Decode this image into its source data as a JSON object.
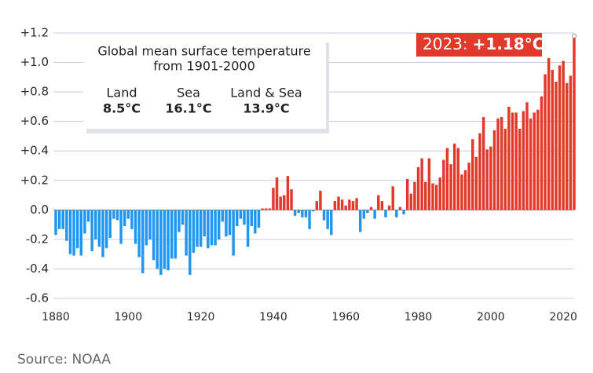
{
  "chart_data": {
    "type": "bar",
    "x": [
      1880,
      1881,
      1882,
      1883,
      1884,
      1885,
      1886,
      1887,
      1888,
      1889,
      1890,
      1891,
      1892,
      1893,
      1894,
      1895,
      1896,
      1897,
      1898,
      1899,
      1900,
      1901,
      1902,
      1903,
      1904,
      1905,
      1906,
      1907,
      1908,
      1909,
      1910,
      1911,
      1912,
      1913,
      1914,
      1915,
      1916,
      1917,
      1918,
      1919,
      1920,
      1921,
      1922,
      1923,
      1924,
      1925,
      1926,
      1927,
      1928,
      1929,
      1930,
      1931,
      1932,
      1933,
      1934,
      1935,
      1936,
      1937,
      1938,
      1939,
      1940,
      1941,
      1942,
      1943,
      1944,
      1945,
      1946,
      1947,
      1948,
      1949,
      1950,
      1951,
      1952,
      1953,
      1954,
      1955,
      1956,
      1957,
      1958,
      1959,
      1960,
      1961,
      1962,
      1963,
      1964,
      1965,
      1966,
      1967,
      1968,
      1969,
      1970,
      1971,
      1972,
      1973,
      1974,
      1975,
      1976,
      1977,
      1978,
      1979,
      1980,
      1981,
      1982,
      1983,
      1984,
      1985,
      1986,
      1987,
      1988,
      1989,
      1990,
      1991,
      1992,
      1993,
      1994,
      1995,
      1996,
      1997,
      1998,
      1999,
      2000,
      2001,
      2002,
      2003,
      2004,
      2005,
      2006,
      2007,
      2008,
      2009,
      2010,
      2011,
      2012,
      2013,
      2014,
      2015,
      2016,
      2017,
      2018,
      2019,
      2020,
      2021,
      2022,
      2023
    ],
    "values": [
      -0.17,
      -0.13,
      -0.13,
      -0.21,
      -0.3,
      -0.31,
      -0.26,
      -0.31,
      -0.16,
      -0.08,
      -0.28,
      -0.2,
      -0.25,
      -0.32,
      -0.26,
      -0.19,
      -0.06,
      -0.07,
      -0.23,
      -0.11,
      -0.06,
      -0.13,
      -0.23,
      -0.32,
      -0.43,
      -0.24,
      -0.2,
      -0.34,
      -0.4,
      -0.44,
      -0.4,
      -0.41,
      -0.33,
      -0.33,
      -0.15,
      -0.1,
      -0.31,
      -0.44,
      -0.29,
      -0.25,
      -0.25,
      -0.18,
      -0.26,
      -0.24,
      -0.24,
      -0.2,
      -0.08,
      -0.18,
      -0.17,
      -0.31,
      -0.11,
      -0.06,
      -0.1,
      -0.25,
      -0.11,
      -0.16,
      -0.12,
      0.01,
      0.01,
      0.01,
      0.15,
      0.22,
      0.09,
      0.1,
      0.23,
      0.14,
      -0.04,
      -0.02,
      -0.05,
      -0.05,
      -0.13,
      -0.01,
      0.06,
      0.13,
      -0.07,
      -0.13,
      -0.17,
      0.06,
      0.09,
      0.07,
      0.03,
      0.07,
      0.06,
      0.08,
      -0.15,
      -0.06,
      -0.02,
      0.02,
      -0.06,
      0.1,
      0.06,
      -0.05,
      0.03,
      0.16,
      -0.05,
      0.02,
      -0.03,
      0.21,
      0.11,
      0.19,
      0.29,
      0.35,
      0.19,
      0.35,
      0.18,
      0.17,
      0.22,
      0.34,
      0.42,
      0.31,
      0.45,
      0.42,
      0.24,
      0.27,
      0.32,
      0.48,
      0.36,
      0.52,
      0.63,
      0.41,
      0.43,
      0.54,
      0.62,
      0.63,
      0.55,
      0.7,
      0.66,
      0.66,
      0.55,
      0.67,
      0.73,
      0.62,
      0.66,
      0.68,
      0.77,
      0.92,
      1.03,
      0.95,
      0.87,
      0.98,
      1.01,
      0.86,
      0.91,
      1.18
    ],
    "positive_color": "#e2392d",
    "negative_color": "#2196f0",
    "xlim": [
      1880,
      2023
    ],
    "xticks": [
      1880,
      1900,
      1920,
      1940,
      1960,
      1980,
      2000,
      2020
    ],
    "ylim": [
      -0.6,
      1.2
    ],
    "yticks": [
      {
        "value": 1.2,
        "label": "+1.2"
      },
      {
        "value": 1.0,
        "label": "+1.0"
      },
      {
        "value": 0.8,
        "label": "+0.8"
      },
      {
        "value": 0.6,
        "label": "+0.6"
      },
      {
        "value": 0.4,
        "label": "+0.4"
      },
      {
        "value": 0.2,
        "label": "+0.2"
      },
      {
        "value": 0,
        "label": "0.0"
      },
      {
        "value": -0.2,
        "label": "-0.2"
      },
      {
        "value": -0.4,
        "label": "-0.4"
      },
      {
        "value": -0.6,
        "label": "-0.6"
      }
    ],
    "grid": true,
    "annotation": {
      "prefix": "2023:",
      "text": "+1.18°C"
    },
    "inset": {
      "title": [
        "Global mean surface temperature",
        "from 1901-2000"
      ],
      "items": [
        {
          "label": "Land",
          "value": "8.5°C"
        },
        {
          "label": "Sea",
          "value": "16.1°C"
        },
        {
          "label": "Land & Sea",
          "value": "13.9°C"
        }
      ]
    },
    "source": "Source: NOAA"
  }
}
